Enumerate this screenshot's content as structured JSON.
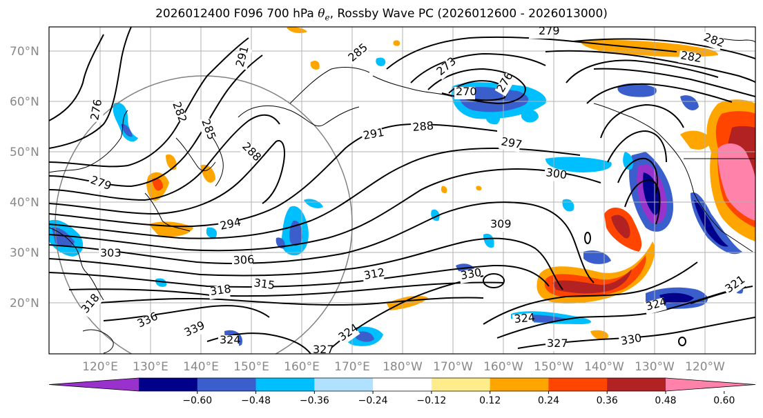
{
  "title": {
    "prefix": "2026012400 F096 700 hPa ",
    "theta": "θ",
    "sub": "e",
    "suffix": ", Rossby Wave PC (2026012600 - 2026013000)"
  },
  "lat_labels": [
    "70°N",
    "60°N",
    "50°N",
    "40°N",
    "30°N",
    "20°N"
  ],
  "lon_labels": [
    "120°E",
    "130°E",
    "140°E",
    "150°E",
    "160°E",
    "170°E",
    "180°W",
    "170°W",
    "160°W",
    "150°W",
    "140°W",
    "130°W",
    "120°W"
  ],
  "colorbar": {
    "ticks": [
      "−0.60",
      "−0.48",
      "−0.36",
      "−0.24",
      "−0.12",
      "0.12",
      "0.24",
      "0.36",
      "0.48",
      "0.60"
    ],
    "colors": [
      "#9932cc",
      "#00008b",
      "#3a5fcd",
      "#00bfff",
      "#b0e2ff",
      "#ffffff",
      "#ffec8b",
      "#ffa500",
      "#ff4500",
      "#b22222",
      "#ff82ab"
    ]
  },
  "contour_labels": [
    "279",
    "282",
    "282",
    "291",
    "285",
    "273",
    "276",
    "270",
    "276",
    "282",
    "285",
    "288",
    "291",
    "288",
    "297",
    "300",
    "279",
    "294",
    "309",
    "303",
    "306",
    "315",
    "312",
    "330",
    "318",
    "318",
    "336",
    "339",
    "324",
    "327",
    "324",
    "324",
    "327",
    "330",
    "321",
    "324"
  ]
}
